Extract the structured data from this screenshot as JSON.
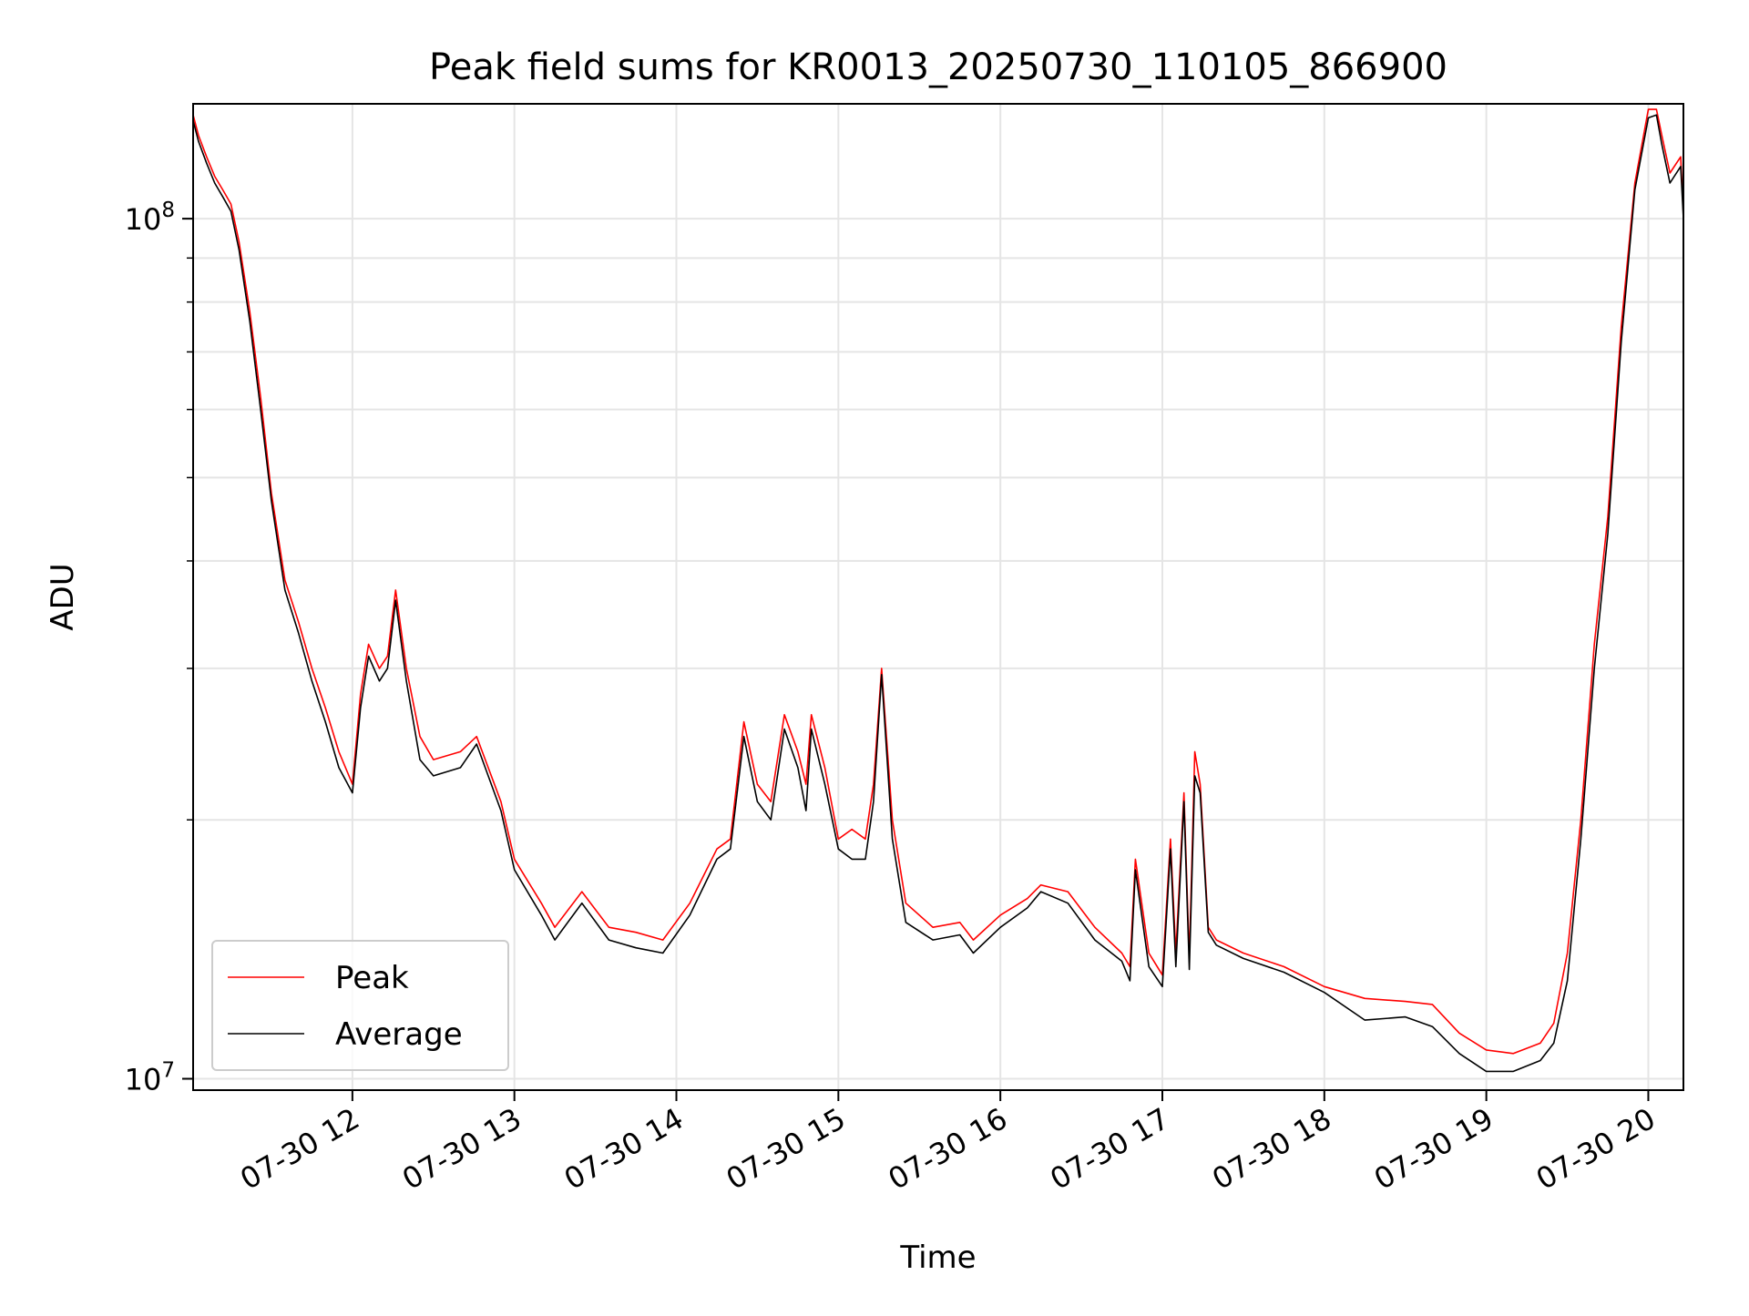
{
  "chart_data": {
    "type": "line",
    "title": "Peak field sums for KR0013_20250730_110105_866900",
    "xlabel": "Time",
    "ylabel": "ADU",
    "y_scale": "log",
    "grid": true,
    "legend_position": "lower-left",
    "xlim": [
      "2025-07-30 11:01",
      "2025-07-30 20:13"
    ],
    "ylim": [
      9700000,
      136000000
    ],
    "x_ticks": [
      {
        "value": "2025-07-30 12:00",
        "label": "07-30 12"
      },
      {
        "value": "2025-07-30 13:00",
        "label": "07-30 13"
      },
      {
        "value": "2025-07-30 14:00",
        "label": "07-30 14"
      },
      {
        "value": "2025-07-30 15:00",
        "label": "07-30 15"
      },
      {
        "value": "2025-07-30 16:00",
        "label": "07-30 16"
      },
      {
        "value": "2025-07-30 17:00",
        "label": "07-30 17"
      },
      {
        "value": "2025-07-30 18:00",
        "label": "07-30 18"
      },
      {
        "value": "2025-07-30 19:00",
        "label": "07-30 19"
      },
      {
        "value": "2025-07-30 20:00",
        "label": "07-30 20"
      }
    ],
    "y_major_ticks": [
      {
        "value": 10000000,
        "base": "10",
        "exp": "7"
      },
      {
        "value": 100000000,
        "base": "10",
        "exp": "8"
      }
    ],
    "y_minor_ticks": [
      20000000,
      30000000,
      40000000,
      50000000,
      60000000,
      70000000,
      80000000,
      90000000
    ],
    "series": [
      {
        "name": "Peak",
        "color": "#ff0000",
        "x": [
          "2025-07-30 11:01",
          "2025-07-30 11:03",
          "2025-07-30 11:06",
          "2025-07-30 11:09",
          "2025-07-30 11:12",
          "2025-07-30 11:15",
          "2025-07-30 11:18",
          "2025-07-30 11:22",
          "2025-07-30 11:26",
          "2025-07-30 11:30",
          "2025-07-30 11:35",
          "2025-07-30 11:40",
          "2025-07-30 11:45",
          "2025-07-30 11:50",
          "2025-07-30 11:55",
          "2025-07-30 12:00",
          "2025-07-30 12:03",
          "2025-07-30 12:06",
          "2025-07-30 12:10",
          "2025-07-30 12:13",
          "2025-07-30 12:16",
          "2025-07-30 12:20",
          "2025-07-30 12:25",
          "2025-07-30 12:30",
          "2025-07-30 12:40",
          "2025-07-30 12:46",
          "2025-07-30 12:55",
          "2025-07-30 13:00",
          "2025-07-30 13:10",
          "2025-07-30 13:15",
          "2025-07-30 13:25",
          "2025-07-30 13:35",
          "2025-07-30 13:45",
          "2025-07-30 13:55",
          "2025-07-30 14:05",
          "2025-07-30 14:15",
          "2025-07-30 14:20",
          "2025-07-30 14:25",
          "2025-07-30 14:30",
          "2025-07-30 14:35",
          "2025-07-30 14:40",
          "2025-07-30 14:45",
          "2025-07-30 14:48",
          "2025-07-30 14:50",
          "2025-07-30 14:55",
          "2025-07-30 15:00",
          "2025-07-30 15:05",
          "2025-07-30 15:10",
          "2025-07-30 15:13",
          "2025-07-30 15:16",
          "2025-07-30 15:20",
          "2025-07-30 15:25",
          "2025-07-30 15:35",
          "2025-07-30 15:45",
          "2025-07-30 15:50",
          "2025-07-30 16:00",
          "2025-07-30 16:10",
          "2025-07-30 16:15",
          "2025-07-30 16:25",
          "2025-07-30 16:35",
          "2025-07-30 16:45",
          "2025-07-30 16:48",
          "2025-07-30 16:50",
          "2025-07-30 16:55",
          "2025-07-30 17:00",
          "2025-07-30 17:03",
          "2025-07-30 17:05",
          "2025-07-30 17:08",
          "2025-07-30 17:10",
          "2025-07-30 17:12",
          "2025-07-30 17:14",
          "2025-07-30 17:17",
          "2025-07-30 17:20",
          "2025-07-30 17:30",
          "2025-07-30 17:45",
          "2025-07-30 18:00",
          "2025-07-30 18:15",
          "2025-07-30 18:30",
          "2025-07-30 18:40",
          "2025-07-30 18:50",
          "2025-07-30 19:00",
          "2025-07-30 19:10",
          "2025-07-30 19:20",
          "2025-07-30 19:25",
          "2025-07-30 19:30",
          "2025-07-30 19:35",
          "2025-07-30 19:40",
          "2025-07-30 19:45",
          "2025-07-30 19:50",
          "2025-07-30 19:55",
          "2025-07-30 20:00",
          "2025-07-30 20:03",
          "2025-07-30 20:05",
          "2025-07-30 20:08",
          "2025-07-30 20:12",
          "2025-07-30 20:13"
        ],
        "values": [
          132000000,
          125000000,
          118000000,
          112000000,
          108000000,
          104000000,
          94000000,
          78000000,
          62000000,
          48000000,
          38000000,
          34000000,
          30000000,
          27000000,
          24000000,
          22000000,
          28000000,
          32000000,
          30000000,
          31000000,
          37000000,
          30000000,
          25000000,
          23500000,
          24000000,
          25000000,
          21000000,
          18000000,
          16000000,
          15000000,
          16500000,
          15000000,
          14800000,
          14500000,
          16000000,
          18500000,
          19000000,
          26000000,
          22000000,
          21000000,
          26500000,
          24000000,
          22000000,
          26500000,
          23000000,
          19000000,
          19500000,
          19000000,
          22000000,
          30000000,
          20000000,
          16000000,
          15000000,
          15200000,
          14500000,
          15500000,
          16200000,
          16800000,
          16500000,
          15000000,
          14000000,
          13500000,
          18000000,
          14000000,
          13200000,
          19000000,
          14000000,
          21500000,
          13800000,
          24000000,
          22000000,
          15000000,
          14500000,
          14000000,
          13500000,
          12800000,
          12400000,
          12300000,
          12200000,
          11300000,
          10800000,
          10700000,
          11000000,
          11600000,
          14000000,
          20000000,
          32000000,
          45000000,
          75000000,
          110000000,
          134000000,
          134000000,
          125000000,
          113000000,
          118000000,
          101000000
        ]
      },
      {
        "name": "Average",
        "color": "#000000",
        "x": [
          "2025-07-30 11:01",
          "2025-07-30 11:03",
          "2025-07-30 11:06",
          "2025-07-30 11:09",
          "2025-07-30 11:12",
          "2025-07-30 11:15",
          "2025-07-30 11:18",
          "2025-07-30 11:22",
          "2025-07-30 11:26",
          "2025-07-30 11:30",
          "2025-07-30 11:35",
          "2025-07-30 11:40",
          "2025-07-30 11:45",
          "2025-07-30 11:50",
          "2025-07-30 11:55",
          "2025-07-30 12:00",
          "2025-07-30 12:03",
          "2025-07-30 12:06",
          "2025-07-30 12:10",
          "2025-07-30 12:13",
          "2025-07-30 12:16",
          "2025-07-30 12:20",
          "2025-07-30 12:25",
          "2025-07-30 12:30",
          "2025-07-30 12:40",
          "2025-07-30 12:46",
          "2025-07-30 12:55",
          "2025-07-30 13:00",
          "2025-07-30 13:10",
          "2025-07-30 13:15",
          "2025-07-30 13:25",
          "2025-07-30 13:35",
          "2025-07-30 13:45",
          "2025-07-30 13:55",
          "2025-07-30 14:05",
          "2025-07-30 14:15",
          "2025-07-30 14:20",
          "2025-07-30 14:25",
          "2025-07-30 14:30",
          "2025-07-30 14:35",
          "2025-07-30 14:40",
          "2025-07-30 14:45",
          "2025-07-30 14:48",
          "2025-07-30 14:50",
          "2025-07-30 14:55",
          "2025-07-30 15:00",
          "2025-07-30 15:05",
          "2025-07-30 15:10",
          "2025-07-30 15:13",
          "2025-07-30 15:16",
          "2025-07-30 15:20",
          "2025-07-30 15:25",
          "2025-07-30 15:35",
          "2025-07-30 15:45",
          "2025-07-30 15:50",
          "2025-07-30 16:00",
          "2025-07-30 16:10",
          "2025-07-30 16:15",
          "2025-07-30 16:25",
          "2025-07-30 16:35",
          "2025-07-30 16:45",
          "2025-07-30 16:48",
          "2025-07-30 16:50",
          "2025-07-30 16:55",
          "2025-07-30 17:00",
          "2025-07-30 17:03",
          "2025-07-30 17:05",
          "2025-07-30 17:08",
          "2025-07-30 17:10",
          "2025-07-30 17:12",
          "2025-07-30 17:14",
          "2025-07-30 17:17",
          "2025-07-30 17:20",
          "2025-07-30 17:30",
          "2025-07-30 17:45",
          "2025-07-30 18:00",
          "2025-07-30 18:15",
          "2025-07-30 18:30",
          "2025-07-30 18:40",
          "2025-07-30 18:50",
          "2025-07-30 19:00",
          "2025-07-30 19:10",
          "2025-07-30 19:20",
          "2025-07-30 19:25",
          "2025-07-30 19:30",
          "2025-07-30 19:35",
          "2025-07-30 19:40",
          "2025-07-30 19:45",
          "2025-07-30 19:50",
          "2025-07-30 19:55",
          "2025-07-30 20:00",
          "2025-07-30 20:03",
          "2025-07-30 20:05",
          "2025-07-30 20:08",
          "2025-07-30 20:12",
          "2025-07-30 20:13"
        ],
        "values": [
          130000000,
          123000000,
          116000000,
          110000000,
          106000000,
          102000000,
          92000000,
          76000000,
          60000000,
          47000000,
          37000000,
          33000000,
          29000000,
          26000000,
          23000000,
          21500000,
          27000000,
          31000000,
          29000000,
          30000000,
          36000000,
          29000000,
          23500000,
          22500000,
          23000000,
          24500000,
          20500000,
          17500000,
          15500000,
          14500000,
          16000000,
          14500000,
          14200000,
          14000000,
          15500000,
          18000000,
          18500000,
          25000000,
          21000000,
          20000000,
          25500000,
          23000000,
          20500000,
          25500000,
          22000000,
          18500000,
          18000000,
          18000000,
          21000000,
          29500000,
          19000000,
          15200000,
          14500000,
          14700000,
          14000000,
          15000000,
          15800000,
          16500000,
          16000000,
          14500000,
          13700000,
          13000000,
          17500000,
          13500000,
          12800000,
          18500000,
          13500000,
          21000000,
          13400000,
          22500000,
          21500000,
          14800000,
          14300000,
          13800000,
          13300000,
          12600000,
          11700000,
          11800000,
          11500000,
          10700000,
          10200000,
          10200000,
          10500000,
          11000000,
          13000000,
          19000000,
          30000000,
          43000000,
          72000000,
          108000000,
          131000000,
          132000000,
          122000000,
          110000000,
          115000000,
          100000000
        ]
      }
    ]
  }
}
